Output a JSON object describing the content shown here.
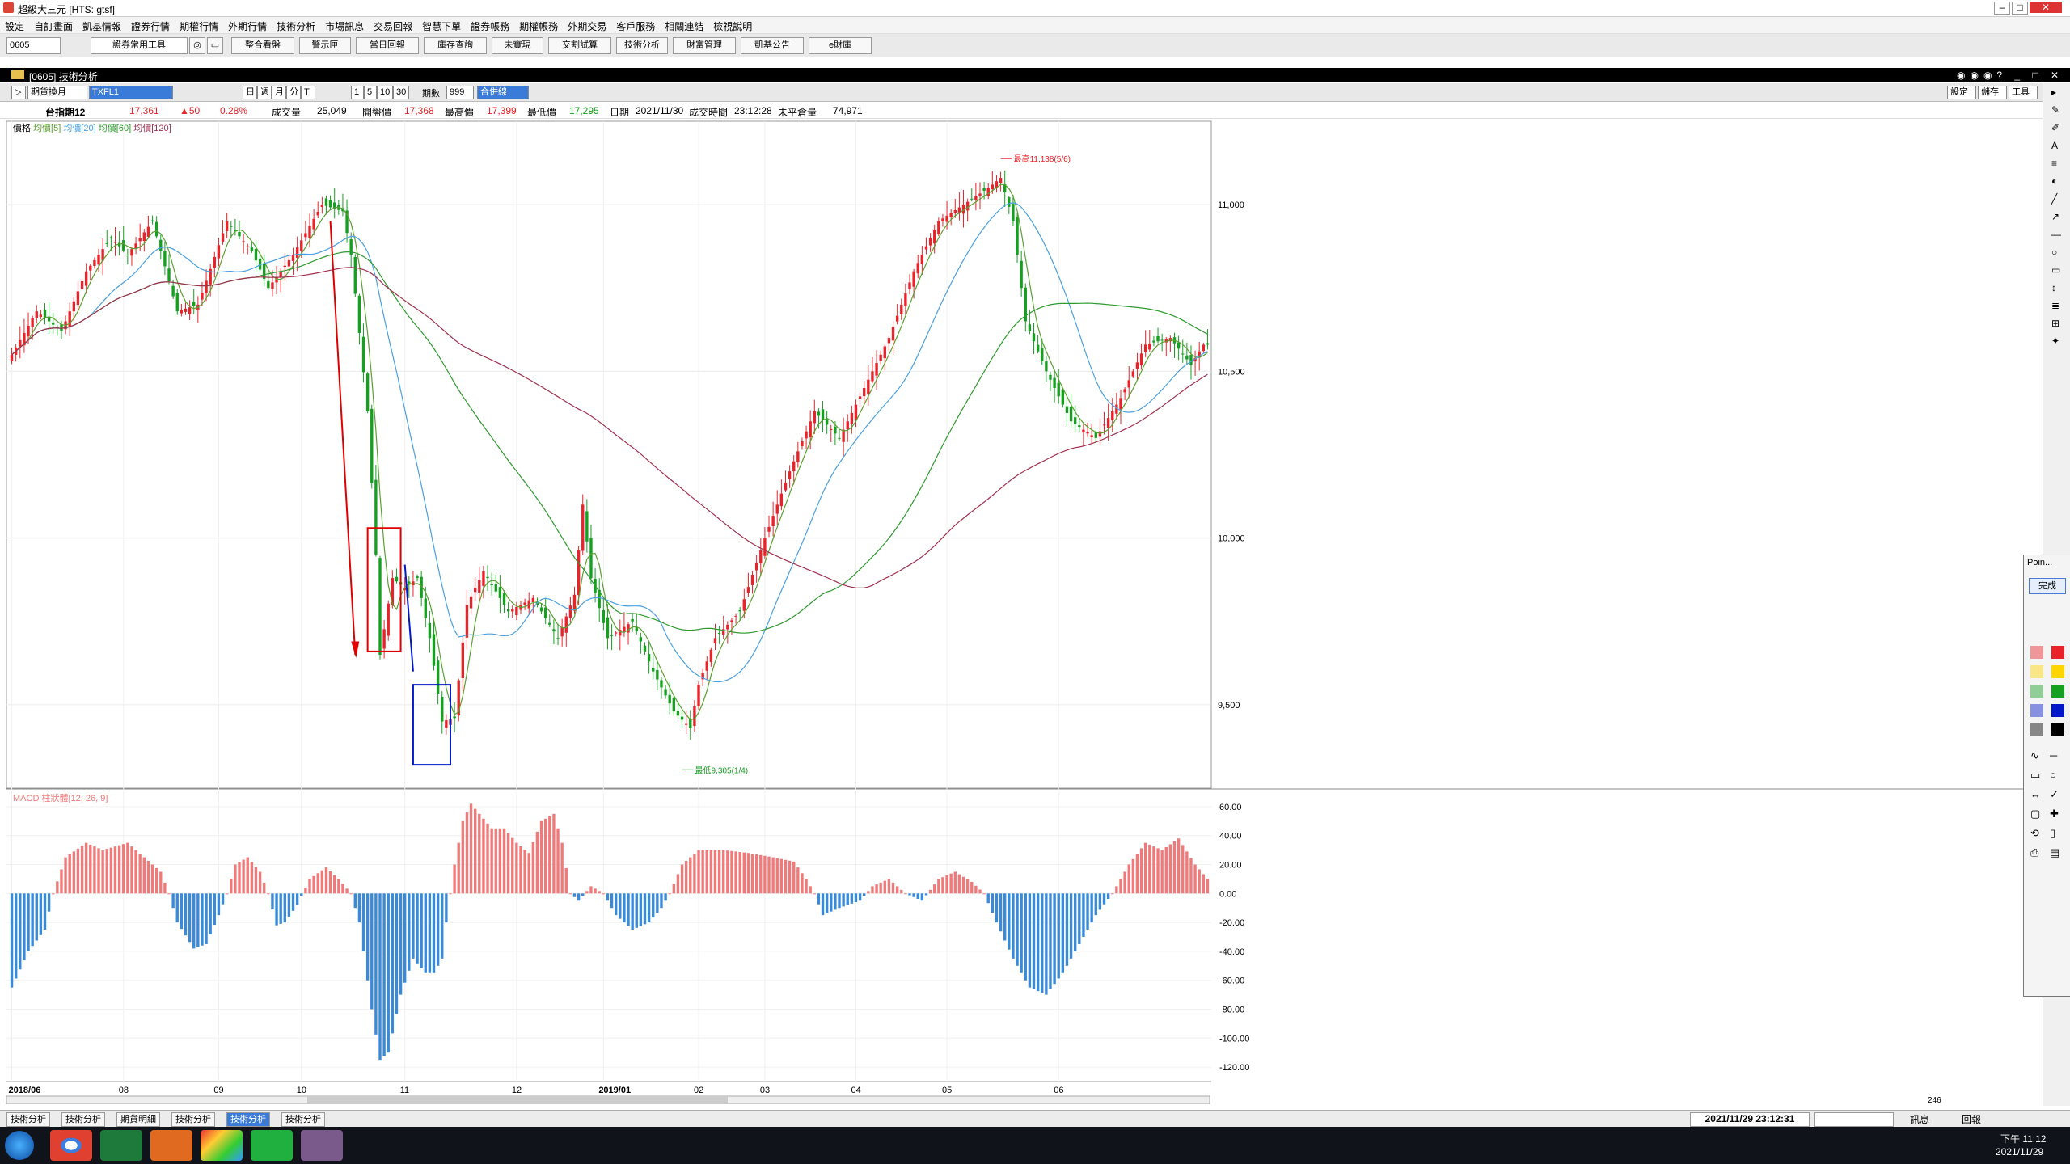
{
  "window": {
    "title": "超級大三元 [HTS: gtsf]"
  },
  "menu": [
    "設定",
    "自訂畫面",
    "凱基情報",
    "證券行情",
    "期權行情",
    "外期行情",
    "技術分析",
    "市場訊息",
    "交易回報",
    "智慧下單",
    "證券帳務",
    "期權帳務",
    "外期交易",
    "客戶服務",
    "相關連結",
    "檢視說明"
  ],
  "toolbar": {
    "stock_code": "0605",
    "tool_select": "證券常用工具",
    "buttons": [
      "整合看盤",
      "警示匣",
      "當日回報",
      "庫存查詢",
      "未實現",
      "交割試算",
      "技術分析",
      "財富管理",
      "凱基公告",
      "e財庫"
    ]
  },
  "subwindow": {
    "title": "[0605] 技術分析"
  },
  "chart_controls": {
    "period": "期貨換月",
    "symbol": "TXFL1",
    "freq_buttons": [
      "日",
      "週",
      "月",
      "分",
      "T"
    ],
    "minute_buttons": [
      "1",
      "5",
      "10",
      "30"
    ],
    "period_label": "期數",
    "period_value": "999",
    "merge_label": "合併線",
    "right_buttons": [
      "設定",
      "儲存",
      "工具"
    ]
  },
  "info": {
    "name": "台指期12",
    "price": "17,361",
    "change": "▲50",
    "pct": "0.28%",
    "vol_label": "成交量",
    "vol": "25,049",
    "open_label": "開盤價",
    "open": "17,368",
    "high_label": "最高價",
    "high": "17,399",
    "low_label": "最低價",
    "low": "17,295",
    "date_label": "日期",
    "date": "2021/11/30",
    "time_label": "成交時間",
    "time": "23:12:28",
    "oi_label": "未平倉量",
    "oi": "74,971"
  },
  "legend": {
    "price": "價格",
    "ma5": "均價[5]",
    "ma20": "均價[20]",
    "ma60": "均價[60]",
    "ma120": "均價[120]",
    "macd": "MACD 柱狀體[12, 26, 9]"
  },
  "colors": {
    "up": "#e8232a",
    "down": "#15a020",
    "ma5": "#5aa030",
    "ma20": "#4aa0e0",
    "ma60": "#2e9a2e",
    "ma120": "#a03050",
    "hist_pos": "#f07a7a",
    "hist_neg": "#3a8ad8",
    "annotation_red": "#e00000",
    "annotation_blue": "#0018c8"
  },
  "chart_data": {
    "type": "candlestick",
    "price_axis": {
      "ticks": [
        9500,
        10000,
        10500,
        11000
      ],
      "tick_labels": [
        "9,500",
        "10,000",
        "10,500",
        "11,000"
      ],
      "range": [
        9250,
        11250
      ]
    },
    "time_labels": [
      "2018/06",
      "08",
      "09",
      "10",
      "11",
      "12",
      "2019/01",
      "02",
      "03",
      "04",
      "05",
      "06"
    ],
    "annotations": {
      "high": "最高11,138(5/6)",
      "low": "最低9,305(1/4)"
    },
    "anchors": [
      [
        0,
        10550
      ],
      [
        6,
        10680
      ],
      [
        12,
        10620
      ],
      [
        18,
        10800
      ],
      [
        24,
        10900
      ],
      [
        28,
        10850
      ],
      [
        34,
        10950
      ],
      [
        40,
        10680
      ],
      [
        45,
        10700
      ],
      [
        52,
        10950
      ],
      [
        58,
        10860
      ],
      [
        62,
        10750
      ],
      [
        68,
        10850
      ],
      [
        75,
        11000
      ],
      [
        80,
        10980
      ],
      [
        82,
        10850
      ],
      [
        86,
        10380
      ],
      [
        88,
        9950
      ],
      [
        89,
        9650
      ],
      [
        92,
        9880
      ],
      [
        95,
        9850
      ],
      [
        98,
        9880
      ],
      [
        101,
        9700
      ],
      [
        104,
        9450
      ],
      [
        107,
        9460
      ],
      [
        110,
        9800
      ],
      [
        114,
        9900
      ],
      [
        120,
        9780
      ],
      [
        126,
        9820
      ],
      [
        132,
        9700
      ],
      [
        136,
        9830
      ],
      [
        138,
        10100
      ],
      [
        140,
        9880
      ],
      [
        144,
        9700
      ],
      [
        150,
        9750
      ],
      [
        155,
        9600
      ],
      [
        160,
        9480
      ],
      [
        164,
        9430
      ],
      [
        166,
        9560
      ],
      [
        170,
        9700
      ],
      [
        176,
        9780
      ],
      [
        182,
        10000
      ],
      [
        188,
        10200
      ],
      [
        194,
        10380
      ],
      [
        200,
        10300
      ],
      [
        206,
        10450
      ],
      [
        212,
        10600
      ],
      [
        218,
        10800
      ],
      [
        224,
        10950
      ],
      [
        230,
        11000
      ],
      [
        236,
        11050
      ],
      [
        239,
        11080
      ],
      [
        242,
        10950
      ],
      [
        245,
        10650
      ],
      [
        250,
        10500
      ],
      [
        256,
        10350
      ],
      [
        262,
        10300
      ],
      [
        268,
        10420
      ],
      [
        274,
        10580
      ],
      [
        280,
        10600
      ],
      [
        285,
        10520
      ],
      [
        288,
        10580
      ]
    ],
    "macd_axis": {
      "ticks": [
        60,
        40,
        20,
        0,
        -20,
        -40,
        -60,
        -80,
        -100,
        -120
      ],
      "tick_labels": [
        "60.00",
        "40.00",
        "20.00",
        "0.00",
        "-20.00",
        "-40.00",
        "-60.00",
        "-80.00",
        "-100.00",
        "-120.00"
      ],
      "range": [
        -130,
        70
      ]
    },
    "macd_anchors": [
      [
        0,
        -65
      ],
      [
        4,
        -40
      ],
      [
        8,
        -25
      ],
      [
        10,
        0
      ],
      [
        13,
        25
      ],
      [
        18,
        35
      ],
      [
        22,
        30
      ],
      [
        28,
        35
      ],
      [
        32,
        25
      ],
      [
        36,
        15
      ],
      [
        38,
        0
      ],
      [
        40,
        -20
      ],
      [
        44,
        -38
      ],
      [
        47,
        -35
      ],
      [
        50,
        -15
      ],
      [
        52,
        0
      ],
      [
        54,
        20
      ],
      [
        57,
        25
      ],
      [
        60,
        15
      ],
      [
        62,
        0
      ],
      [
        64,
        -22
      ],
      [
        66,
        -20
      ],
      [
        69,
        -8
      ],
      [
        72,
        10
      ],
      [
        76,
        18
      ],
      [
        79,
        10
      ],
      [
        82,
        0
      ],
      [
        84,
        -20
      ],
      [
        87,
        -80
      ],
      [
        89,
        -115
      ],
      [
        91,
        -110
      ],
      [
        94,
        -70
      ],
      [
        97,
        -45
      ],
      [
        100,
        -55
      ],
      [
        102,
        -55
      ],
      [
        104,
        -45
      ],
      [
        105,
        -20
      ],
      [
        107,
        20
      ],
      [
        109,
        50
      ],
      [
        111,
        62
      ],
      [
        113,
        55
      ],
      [
        116,
        45
      ],
      [
        119,
        45
      ],
      [
        122,
        35
      ],
      [
        125,
        28
      ],
      [
        128,
        50
      ],
      [
        131,
        55
      ],
      [
        133,
        35
      ],
      [
        135,
        0
      ],
      [
        137,
        -5
      ],
      [
        140,
        5
      ],
      [
        143,
        0
      ],
      [
        146,
        -15
      ],
      [
        150,
        -25
      ],
      [
        154,
        -20
      ],
      [
        157,
        -10
      ],
      [
        159,
        0
      ],
      [
        162,
        20
      ],
      [
        166,
        30
      ],
      [
        172,
        30
      ],
      [
        178,
        28
      ],
      [
        184,
        25
      ],
      [
        189,
        22
      ],
      [
        192,
        10
      ],
      [
        194,
        0
      ],
      [
        196,
        -15
      ],
      [
        200,
        -10
      ],
      [
        205,
        -5
      ],
      [
        208,
        5
      ],
      [
        212,
        10
      ],
      [
        216,
        0
      ],
      [
        220,
        -5
      ],
      [
        224,
        10
      ],
      [
        228,
        15
      ],
      [
        232,
        8
      ],
      [
        235,
        0
      ],
      [
        238,
        -20
      ],
      [
        242,
        -45
      ],
      [
        246,
        -65
      ],
      [
        250,
        -70
      ],
      [
        254,
        -55
      ],
      [
        258,
        -35
      ],
      [
        262,
        -15
      ],
      [
        266,
        0
      ],
      [
        270,
        20
      ],
      [
        274,
        35
      ],
      [
        278,
        30
      ],
      [
        282,
        38
      ],
      [
        286,
        20
      ],
      [
        289,
        10
      ]
    ]
  },
  "drawing_panel": {
    "title": "Poin...",
    "done": "完成"
  },
  "bottom_tabs": [
    "技術分析",
    "技術分析",
    "期貨明細",
    "技術分析",
    "技術分析",
    "技術分析"
  ],
  "status": {
    "datetime": "2021/11/29 23:12:31",
    "news": "訊息",
    "reply": "回報",
    "zoom": "246"
  },
  "taskbar": {
    "time": "下午 11:12",
    "date": "2021/11/29"
  }
}
